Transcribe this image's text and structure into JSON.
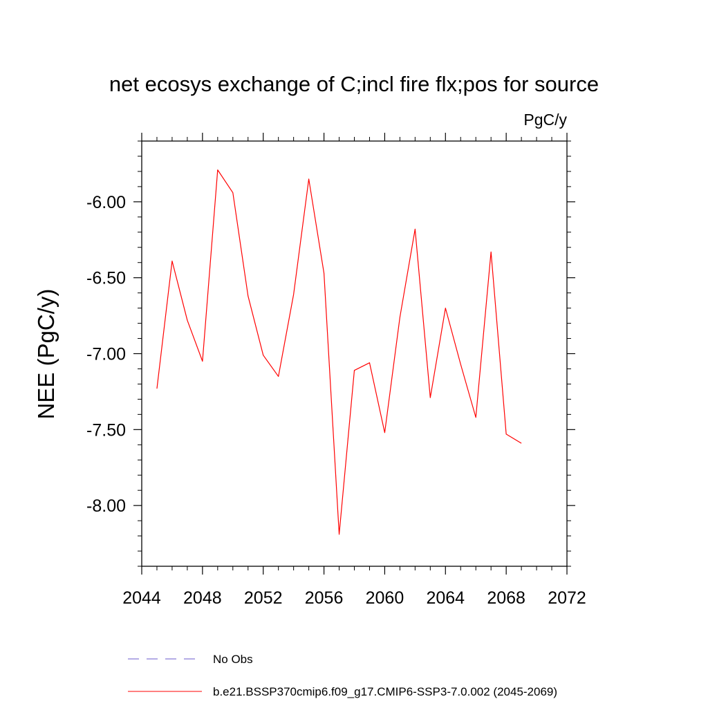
{
  "chart_data": {
    "type": "line",
    "title": "net ecosys exchange of C;incl fire flx;pos for source",
    "units_label": "PgC/y",
    "ylabel": "NEE  (PgC/y)",
    "xlabel": "",
    "xlim": [
      2044,
      2072
    ],
    "ylim": [
      -8.4,
      -5.6
    ],
    "x_ticks": [
      2044,
      2048,
      2052,
      2056,
      2060,
      2064,
      2068,
      2072
    ],
    "x_tick_labels": [
      "2044",
      "2048",
      "2052",
      "2056",
      "2060",
      "2064",
      "2068",
      "2072"
    ],
    "y_ticks": [
      -8.0,
      -7.5,
      -7.0,
      -6.5,
      -6.0
    ],
    "y_tick_labels": [
      "-8.00",
      "-7.50",
      "-7.00",
      "-6.50",
      "-6.00"
    ],
    "grid": false,
    "legend_position": "bottom",
    "series": [
      {
        "name": "b.e21.BSSP370cmip6.f09_g17.CMIP6-SSP3-7.0.002 (2045-2069)",
        "color": "#ff0000",
        "style": "solid",
        "x": [
          2045,
          2046,
          2047,
          2048,
          2049,
          2050,
          2051,
          2052,
          2053,
          2054,
          2055,
          2056,
          2057,
          2058,
          2059,
          2060,
          2061,
          2062,
          2063,
          2064,
          2065,
          2066,
          2067,
          2068,
          2069
        ],
        "y": [
          -7.23,
          -6.39,
          -6.78,
          -7.05,
          -5.79,
          -5.94,
          -6.62,
          -7.01,
          -7.15,
          -6.61,
          -5.85,
          -6.47,
          -8.19,
          -7.11,
          -7.06,
          -7.52,
          -6.76,
          -6.18,
          -7.29,
          -6.7,
          -7.07,
          -7.42,
          -6.33,
          -7.53,
          -7.59
        ]
      }
    ],
    "legend": [
      {
        "label": "No Obs",
        "color": "#6a5acd",
        "style": "dashed"
      },
      {
        "label": "b.e21.BSSP370cmip6.f09_g17.CMIP6-SSP3-7.0.002 (2045-2069)",
        "color": "#ff0000",
        "style": "solid"
      }
    ]
  }
}
